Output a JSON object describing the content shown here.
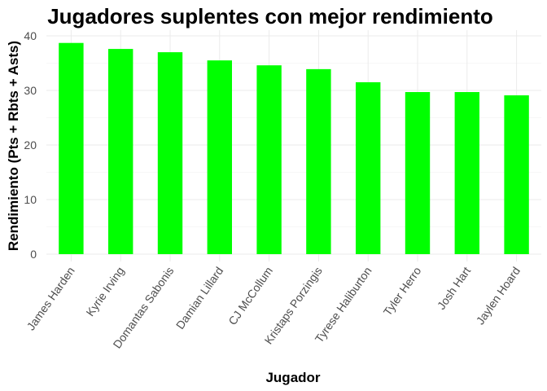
{
  "chart_data": {
    "type": "bar",
    "title": "Jugadores suplentes con mejor rendimiento",
    "xlabel": "Jugador",
    "ylabel": "Rendimiento (Pts + Rbts + Asts)",
    "categories": [
      "James Harden",
      "Kyrie Irving",
      "Domantas Sabonis",
      "Damian Lillard",
      "CJ McCollum",
      "Kristaps Porzingis",
      "Tyrese Haliburton",
      "Tyler Herro",
      "Josh Hart",
      "Jaylen Hoard"
    ],
    "values": [
      38.7,
      37.6,
      37.0,
      35.5,
      34.6,
      33.9,
      31.5,
      29.7,
      29.7,
      29.1
    ],
    "ylim": [
      0,
      40
    ],
    "yticks": [
      "0",
      "10",
      "20",
      "30",
      "40"
    ],
    "grid": true,
    "bar_color": "#00ff00"
  }
}
